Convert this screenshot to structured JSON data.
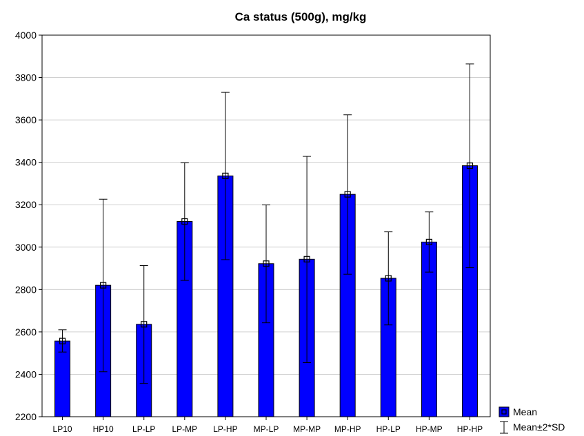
{
  "chart_data": {
    "type": "bar",
    "title": "Ca status (500g), mg/kg",
    "xlabel": "",
    "ylabel": "",
    "ylim": [
      2200,
      4000
    ],
    "yticks": [
      2200,
      2400,
      2600,
      2800,
      3000,
      3200,
      3400,
      3600,
      3800,
      4000
    ],
    "grid": true,
    "legend_position": "bottom-right",
    "categories": [
      "LP10",
      "HP10",
      "LP-LP",
      "LP-MP",
      "LP-HP",
      "MP-LP",
      "MP-MP",
      "MP-HP",
      "HP-LP",
      "HP-MP",
      "HP-HP"
    ],
    "series": [
      {
        "name": "Mean",
        "values": [
          2557,
          2820,
          2636,
          3121,
          3336,
          2922,
          2943,
          3249,
          2853,
          3024,
          3384
        ],
        "error_low": [
          2505,
          2412,
          2357,
          2843,
          2941,
          2643,
          2455,
          2872,
          2633,
          2882,
          2903
        ],
        "error_high": [
          2610,
          3226,
          2913,
          3398,
          3730,
          3199,
          3428,
          3624,
          3072,
          3166,
          3864
        ]
      }
    ],
    "legend": {
      "mean_label": "Mean",
      "error_label": "Mean±2*SD"
    },
    "colors": {
      "bar_fill": "#0000ff",
      "bar_stroke": "#000000",
      "grid": "#d0d0d0"
    }
  }
}
